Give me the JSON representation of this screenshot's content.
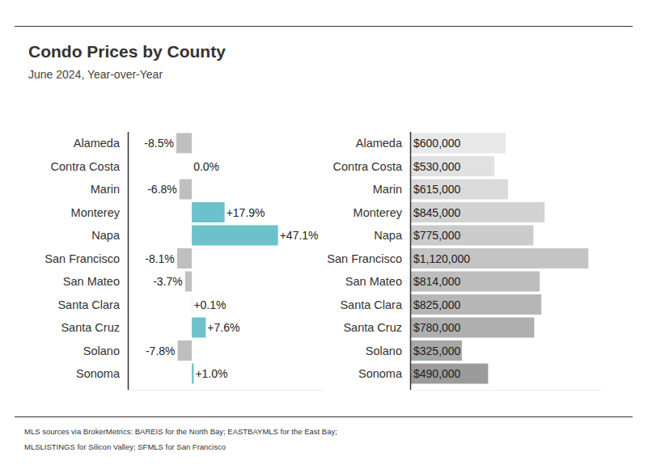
{
  "title": "Condo Prices by County",
  "subtitle": "June 2024, Year-over-Year",
  "note": "MLS sources via BrokerMetrics: BAREIS for the North Bay; EASTBAYMLS for the East Bay; MLSLISTINGS for Silicon Valley; SFMLS for San Francisco",
  "chart_data": [
    {
      "type": "bar",
      "orientation": "horizontal",
      "categories": [
        "Alameda",
        "Contra Costa",
        "Marin",
        "Monterey",
        "Napa",
        "San Francisco",
        "San Mateo",
        "Santa Clara",
        "Santa Cruz",
        "Solano",
        "Sonoma"
      ],
      "values": [
        -8.5,
        0.0,
        -6.8,
        17.9,
        47.1,
        -8.1,
        -3.7,
        0.1,
        7.6,
        -7.8,
        1.0
      ],
      "value_labels": [
        "-8.5%",
        "0.0%",
        "-6.8%",
        "+17.9%",
        "+47.1%",
        "-8.1%",
        "-3.7%",
        "+0.1%",
        "+7.6%",
        "-7.8%",
        "+1.0%"
      ],
      "colors": [
        "#bfbfbf",
        "#bfbfbf",
        "#bfbfbf",
        "#6cc1cb",
        "#6cc1cb",
        "#bfbfbf",
        "#bfbfbf",
        "#6cc1cb",
        "#6cc1cb",
        "#bfbfbf",
        "#6cc1cb"
      ],
      "xlim": [
        -35,
        72
      ],
      "data_labels": true,
      "tick_labels": "y",
      "grid": false
    },
    {
      "type": "bar",
      "orientation": "horizontal",
      "categories": [
        "Alameda",
        "Contra Costa",
        "Marin",
        "Monterey",
        "Napa",
        "San Francisco",
        "San Mateo",
        "Santa Clara",
        "Santa Cruz",
        "Solano",
        "Sonoma"
      ],
      "values": [
        600000,
        530000,
        615000,
        845000,
        775000,
        1120000,
        814000,
        825000,
        780000,
        325000,
        490000
      ],
      "value_labels": [
        "$600,000",
        "$530,000",
        "$615,000",
        "$845,000",
        "$775,000",
        "$1,120,000",
        "$814,000",
        "$825,000",
        "$780,000",
        "$325,000",
        "$490,000"
      ],
      "colors": [
        "#e8e8e8",
        "#e1e1e1",
        "#dadada",
        "#d2d2d2",
        "#cbcbcb",
        "#c4c4c4",
        "#bdbdbd",
        "#b6b6b6",
        "#afafaf",
        "#a7a7a7",
        "#9b9b9b"
      ],
      "xlim": [
        0,
        1200000
      ],
      "data_labels": true,
      "tick_labels": "y",
      "grid": false
    }
  ]
}
